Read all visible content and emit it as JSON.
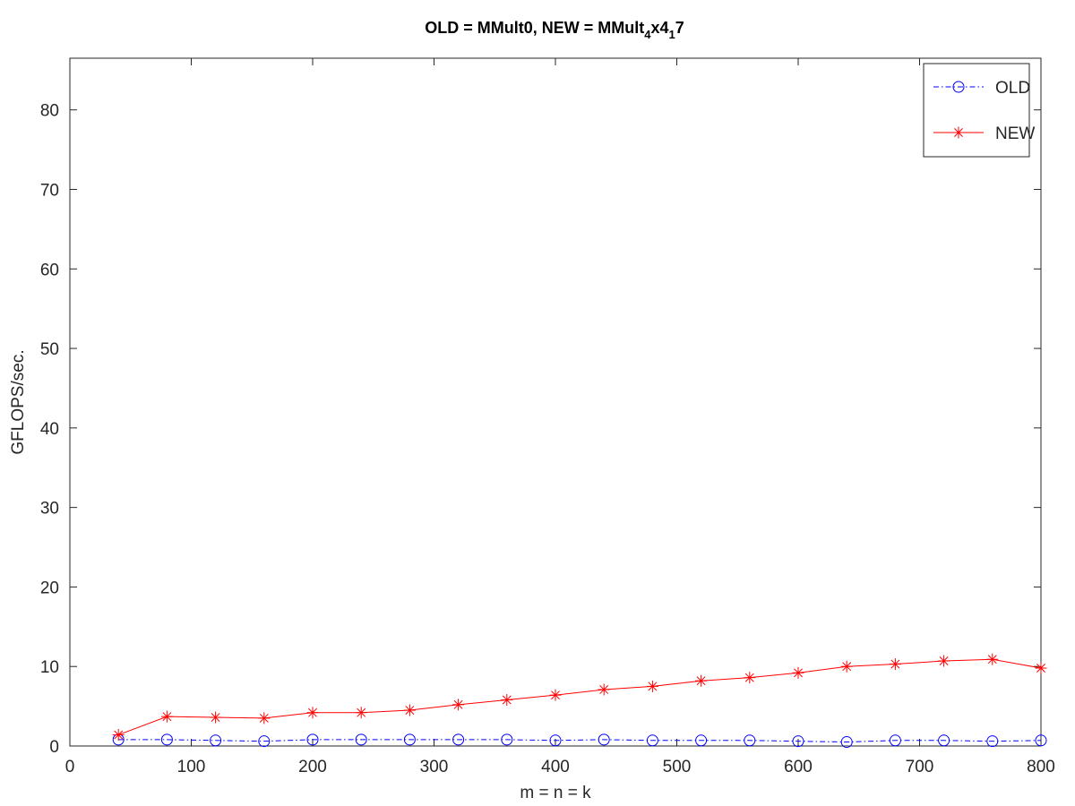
{
  "chart_data": {
    "type": "line",
    "title_main": "OLD = MMult0, NEW = MMult",
    "title_sub1": "4",
    "title_mid": "x4",
    "title_sub2": "1",
    "title_end": "7",
    "xlabel": "m = n = k",
    "ylabel": "GFLOPS/sec.",
    "xlim": [
      0,
      800
    ],
    "ylim": [
      0,
      86.5
    ],
    "xticks": [
      0,
      100,
      200,
      300,
      400,
      500,
      600,
      700,
      800
    ],
    "yticks": [
      0,
      10,
      20,
      30,
      40,
      50,
      60,
      70,
      80
    ],
    "grid": false,
    "legend_position": "top-right",
    "x": [
      40,
      80,
      120,
      160,
      200,
      240,
      280,
      320,
      360,
      400,
      440,
      480,
      520,
      560,
      600,
      640,
      680,
      720,
      760,
      800
    ],
    "series": [
      {
        "name": "OLD",
        "color": "#0000ff",
        "marker": "circle",
        "line_style": "dash-dot",
        "values": [
          0.8,
          0.8,
          0.7,
          0.6,
          0.8,
          0.8,
          0.8,
          0.8,
          0.8,
          0.7,
          0.8,
          0.7,
          0.7,
          0.7,
          0.6,
          0.5,
          0.7,
          0.7,
          0.6,
          0.7
        ]
      },
      {
        "name": "NEW",
        "color": "#ff0000",
        "marker": "asterisk",
        "line_style": "solid",
        "values": [
          1.4,
          3.7,
          3.6,
          3.5,
          4.2,
          4.2,
          4.5,
          5.2,
          5.8,
          6.4,
          7.1,
          7.5,
          8.2,
          8.6,
          9.2,
          10.0,
          10.3,
          10.7,
          10.9,
          9.8
        ]
      }
    ]
  }
}
